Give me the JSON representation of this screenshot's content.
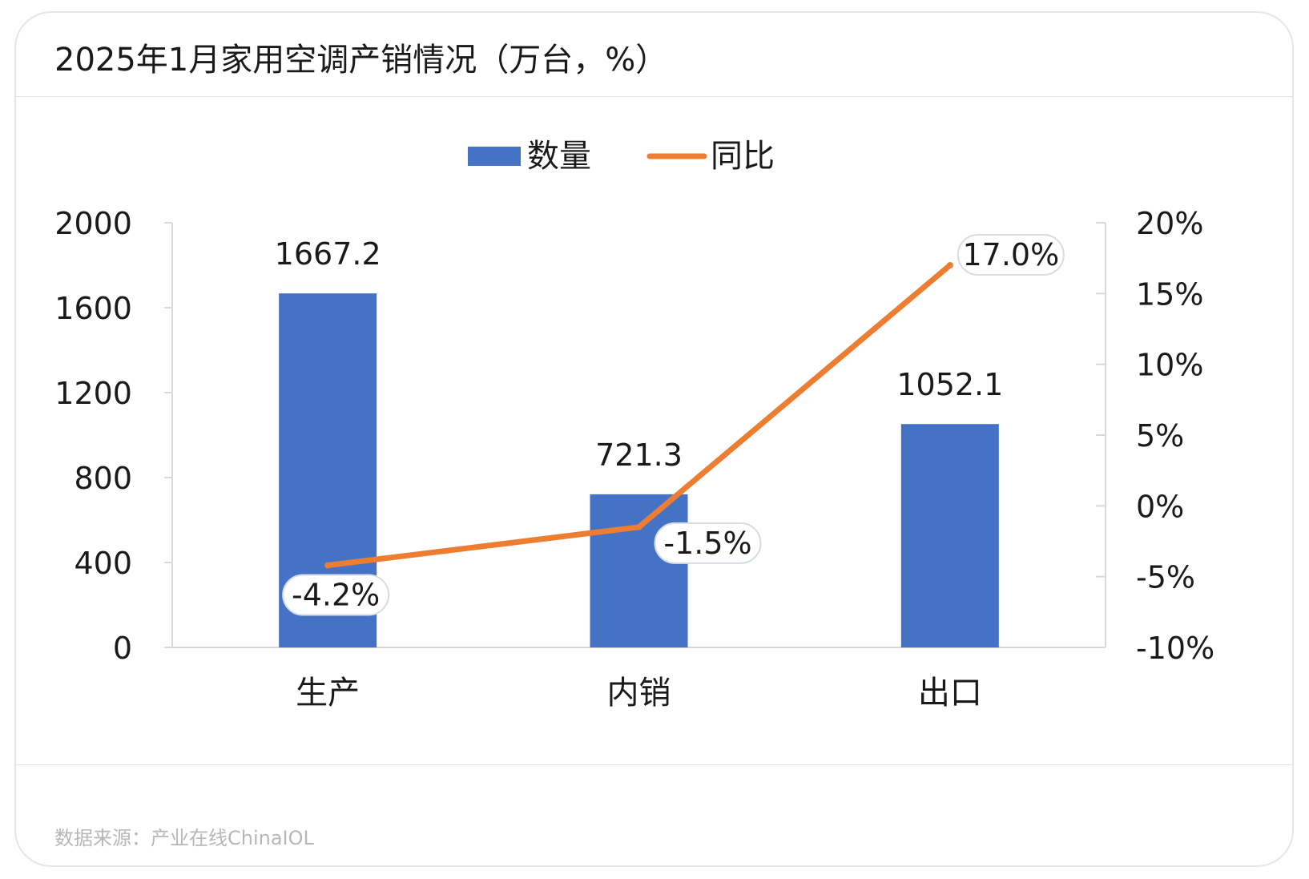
{
  "title": "2025年1月家用空调产销情况（万台，%）",
  "source": "数据来源：产业在线ChinaIOL",
  "colors": {
    "bar": "#4472c4",
    "line": "#ed7d31"
  },
  "chart_data": {
    "type": "bar",
    "categories": [
      "生产",
      "内销",
      "出口"
    ],
    "series": [
      {
        "name": "数量",
        "type": "bar",
        "axis": "left",
        "values": [
          1667.2,
          721.3,
          1052.1
        ],
        "labels": [
          "1667.2",
          "721.3",
          "1052.1"
        ]
      },
      {
        "name": "同比",
        "type": "line",
        "axis": "right",
        "values": [
          -4.2,
          -1.5,
          17.0
        ],
        "labels": [
          "-4.2%",
          "-1.5%",
          "17.0%"
        ]
      }
    ],
    "y_left": {
      "ylim": [
        0,
        2000
      ],
      "ticks": [
        0,
        400,
        800,
        1200,
        1600,
        2000
      ],
      "tick_labels": [
        "0",
        "400",
        "800",
        "1200",
        "1600",
        "2000"
      ]
    },
    "y_right": {
      "ylim": [
        -10,
        20
      ],
      "ticks": [
        -10,
        -5,
        0,
        5,
        10,
        15,
        20
      ],
      "tick_labels": [
        "-10%",
        "-5%",
        "0%",
        "5%",
        "10%",
        "15%",
        "20%"
      ]
    },
    "legend": {
      "position": "top",
      "items": [
        "数量",
        "同比"
      ]
    }
  }
}
